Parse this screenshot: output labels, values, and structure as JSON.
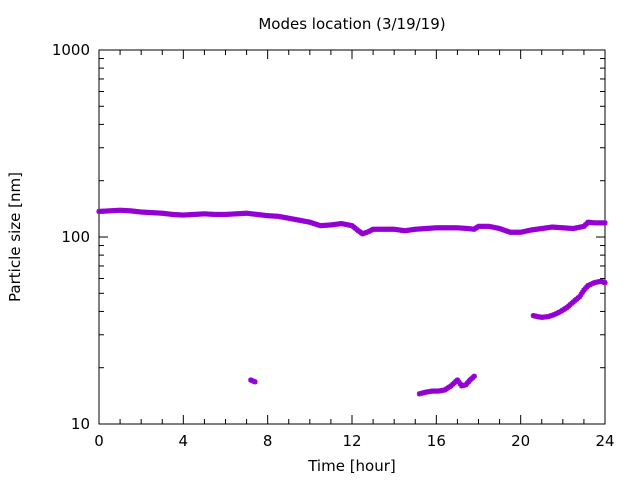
{
  "chart_data": {
    "type": "scatter",
    "title": "Modes location (3/19/19)",
    "xlabel": "Time [hour]",
    "ylabel": "Particle size [nm]",
    "xlim": [
      0,
      24
    ],
    "ylim": [
      10,
      1000
    ],
    "yscale": "log",
    "x_ticks": [
      0,
      4,
      8,
      12,
      16,
      20,
      24
    ],
    "y_ticks": [
      10,
      100,
      1000
    ],
    "x_tick_labels": [
      "0",
      "4",
      "8",
      "12",
      "16",
      "20",
      "24"
    ],
    "y_tick_labels": [
      "10",
      "100",
      "1000"
    ],
    "grid": false,
    "marker_color": "#9400d3",
    "series": [
      {
        "points": [
          [
            0.0,
            137
          ],
          [
            0.5,
            138
          ],
          [
            1.0,
            139
          ],
          [
            1.5,
            138
          ],
          [
            2.0,
            136
          ],
          [
            2.5,
            135
          ],
          [
            3.0,
            134
          ],
          [
            3.5,
            132
          ],
          [
            4.0,
            131
          ],
          [
            4.5,
            132
          ],
          [
            5.0,
            133
          ],
          [
            5.5,
            132
          ],
          [
            6.0,
            132
          ],
          [
            6.5,
            133
          ],
          [
            7.0,
            134
          ],
          [
            7.5,
            132
          ],
          [
            8.0,
            130
          ],
          [
            8.5,
            129
          ],
          [
            9.0,
            126
          ],
          [
            9.5,
            123
          ],
          [
            10.0,
            120
          ],
          [
            10.5,
            115
          ],
          [
            11.0,
            116
          ],
          [
            11.5,
            118
          ],
          [
            12.0,
            115
          ],
          [
            12.3,
            108
          ],
          [
            12.5,
            104
          ],
          [
            12.8,
            107
          ],
          [
            13.0,
            110
          ],
          [
            13.5,
            110
          ],
          [
            14.0,
            110
          ],
          [
            14.5,
            108
          ],
          [
            15.0,
            110
          ],
          [
            15.5,
            111
          ],
          [
            16.0,
            112
          ],
          [
            16.5,
            112
          ],
          [
            17.0,
            112
          ],
          [
            17.5,
            111
          ],
          [
            17.8,
            110
          ],
          [
            18.0,
            114
          ],
          [
            18.5,
            114
          ],
          [
            19.0,
            111
          ],
          [
            19.5,
            106
          ],
          [
            20.0,
            106
          ],
          [
            20.5,
            109
          ],
          [
            21.0,
            111
          ],
          [
            21.5,
            113
          ],
          [
            22.0,
            112
          ],
          [
            22.5,
            111
          ],
          [
            23.0,
            114
          ],
          [
            23.2,
            120
          ],
          [
            23.5,
            119
          ],
          [
            24.0,
            119
          ]
        ]
      },
      {
        "points": [
          [
            20.6,
            38
          ],
          [
            20.8,
            37.5
          ],
          [
            21.0,
            37.2
          ],
          [
            21.3,
            37.5
          ],
          [
            21.6,
            38.5
          ],
          [
            21.9,
            40
          ],
          [
            22.2,
            42
          ],
          [
            22.5,
            45
          ],
          [
            22.8,
            48
          ],
          [
            23.0,
            52
          ],
          [
            23.2,
            55
          ],
          [
            23.5,
            57
          ],
          [
            23.8,
            58
          ],
          [
            24.0,
            57
          ]
        ]
      },
      {
        "points": [
          [
            7.2,
            17.2
          ],
          [
            7.4,
            16.8
          ]
        ]
      },
      {
        "points": [
          [
            15.2,
            14.5
          ],
          [
            15.5,
            14.8
          ],
          [
            15.8,
            15.0
          ],
          [
            16.1,
            15.0
          ],
          [
            16.4,
            15.2
          ],
          [
            16.7,
            16.0
          ],
          [
            17.0,
            17.2
          ],
          [
            17.2,
            16.0
          ],
          [
            17.4,
            16.2
          ],
          [
            17.6,
            17.2
          ],
          [
            17.8,
            18.0
          ]
        ]
      }
    ]
  }
}
